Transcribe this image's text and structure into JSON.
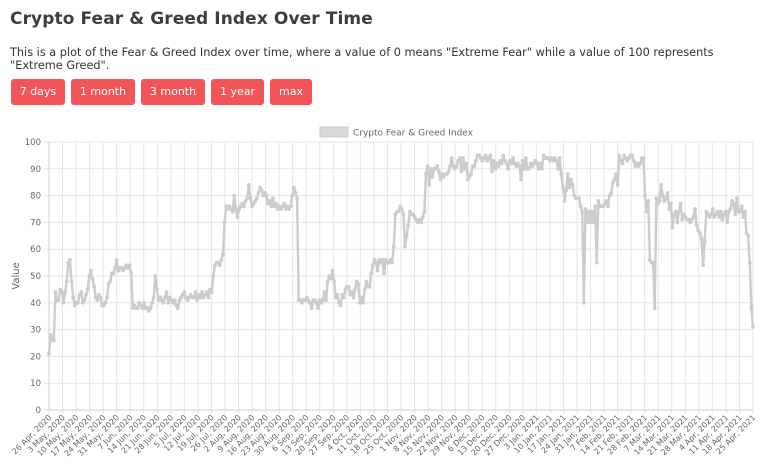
{
  "page": {
    "title": "Crypto Fear & Greed Index Over Time",
    "description": "This is a plot of the Fear & Greed Index over time, where a value of 0 means \"Extreme Fear\" while a value of 100 represents \"Extreme Greed\"."
  },
  "buttons": [
    {
      "label": "7 days"
    },
    {
      "label": "1 month"
    },
    {
      "label": "3 month"
    },
    {
      "label": "1 year"
    },
    {
      "label": "max"
    }
  ],
  "colors": {
    "accent": "#f25557",
    "series": "#cccccc",
    "grid": "#e6e6e6"
  },
  "chart_data": {
    "type": "line",
    "title": "",
    "xlabel": "",
    "ylabel": "Value",
    "ylim": [
      0,
      100
    ],
    "yticks": [
      0,
      10,
      20,
      30,
      40,
      50,
      60,
      70,
      80,
      90,
      100
    ],
    "grid": true,
    "legend_position": "top",
    "x_tick_labels": [
      "26 Apr, 2020",
      "3 May, 2020",
      "10 May, 2020",
      "17 May, 2020",
      "24 May, 2020",
      "31 May, 2020",
      "7 Jun, 2020",
      "14 Jun, 2020",
      "21 Jun, 2020",
      "28 Jun, 2020",
      "5 Jul, 2020",
      "12 Jul, 2020",
      "19 Jul, 2020",
      "26 Jul, 2020",
      "2 Aug, 2020",
      "9 Aug, 2020",
      "16 Aug, 2020",
      "23 Aug, 2020",
      "30 Aug, 2020",
      "6 Sep, 2020",
      "13 Sep, 2020",
      "20 Sep, 2020",
      "27 Sep, 2020",
      "4 Oct, 2020",
      "11 Oct, 2020",
      "18 Oct, 2020",
      "25 Oct, 2020",
      "1 Nov, 2020",
      "8 Nov, 2020",
      "15 Nov, 2020",
      "22 Nov, 2020",
      "29 Nov, 2020",
      "6 Dec, 2020",
      "13 Dec, 2020",
      "20 Dec, 2020",
      "27 Dec, 2020",
      "3 Jan, 2021",
      "10 Jan, 2021",
      "17 Jan, 2021",
      "24 Jan, 2021",
      "31 Jan, 2021",
      "7 Feb, 2021",
      "14 Feb, 2021",
      "21 Feb, 2021",
      "28 Feb, 2021",
      "7 Mar, 2021",
      "14 Mar, 2021",
      "21 Mar, 2021",
      "28 Mar, 2021",
      "4 Apr, 2021",
      "11 Apr, 2021",
      "18 Apr, 2021",
      "25 Apr, 2021"
    ],
    "series": [
      {
        "name": "Crypto Fear & Greed Index",
        "values": [
          21,
          28,
          26,
          26,
          44,
          41,
          41,
          45,
          44,
          40,
          44,
          48,
          55,
          56,
          48,
          42,
          39,
          40,
          40,
          43,
          44,
          40,
          41,
          43,
          45,
          50,
          52,
          49,
          46,
          42,
          41,
          43,
          42,
          39,
          39,
          40,
          42,
          47,
          48,
          51,
          51,
          53,
          56,
          52,
          53,
          53,
          52,
          53,
          54,
          53,
          54,
          51,
          38,
          39,
          38,
          38,
          40,
          39,
          38,
          40,
          38,
          38,
          37,
          38,
          40,
          42,
          50,
          45,
          41,
          42,
          41,
          40,
          42,
          44,
          40,
          42,
          41,
          40,
          41,
          39,
          38,
          41,
          42,
          43,
          44,
          42,
          41,
          42,
          43,
          42,
          42,
          44,
          41,
          43,
          42,
          44,
          42,
          43,
          44,
          42,
          45,
          44,
          50,
          54,
          55,
          55,
          54,
          56,
          58,
          70,
          76,
          75,
          76,
          75,
          74,
          80,
          75,
          72,
          75,
          76,
          77,
          76,
          78,
          79,
          84,
          79,
          76,
          77,
          78,
          79,
          81,
          83,
          82,
          80,
          81,
          80,
          77,
          78,
          76,
          79,
          76,
          77,
          75,
          76,
          75,
          76,
          77,
          75,
          76,
          75,
          76,
          80,
          83,
          81,
          79,
          41,
          41,
          40,
          41,
          41,
          42,
          41,
          40,
          38,
          41,
          41,
          40,
          38,
          41,
          40,
          41,
          44,
          41,
          48,
          50,
          49,
          52,
          48,
          42,
          43,
          40,
          39,
          43,
          42,
          45,
          46,
          46,
          43,
          44,
          42,
          45,
          48,
          47,
          40,
          42,
          40,
          45,
          48,
          46,
          46,
          51,
          54,
          56,
          55,
          52,
          56,
          55,
          56,
          51,
          56,
          55,
          55,
          56,
          55,
          61,
          73,
          74,
          74,
          76,
          75,
          73,
          61,
          65,
          69,
          74,
          73,
          73,
          72,
          71,
          70,
          71,
          70,
          72,
          74,
          88,
          91,
          84,
          90,
          87,
          90,
          90,
          91,
          89,
          86,
          88,
          87,
          88,
          88,
          89,
          91,
          94,
          91,
          90,
          91,
          93,
          94,
          89,
          94,
          90,
          92,
          86,
          87,
          88,
          91,
          91,
          93,
          95,
          95,
          94,
          93,
          94,
          95,
          93,
          94,
          95,
          89,
          93,
          90,
          92,
          91,
          93,
          92,
          95,
          93,
          92,
          90,
          93,
          92,
          94,
          92,
          91,
          92,
          91,
          86,
          93,
          90,
          94,
          90,
          90,
          92,
          91,
          92,
          93,
          92,
          90,
          92,
          90,
          95,
          94,
          94,
          94,
          93,
          94,
          93,
          94,
          93,
          90,
          94,
          88,
          83,
          78,
          82,
          88,
          83,
          86,
          84,
          80,
          79,
          79,
          79,
          76,
          74,
          40,
          75,
          70,
          74,
          70,
          74,
          70,
          76,
          55,
          78,
          76,
          76,
          76,
          77,
          78,
          76,
          80,
          81,
          85,
          86,
          88,
          84,
          95,
          93,
          92,
          95,
          94,
          93,
          94,
          95,
          95,
          93,
          91,
          92,
          91,
          92,
          94,
          94,
          80,
          74,
          78,
          56,
          55,
          55,
          38,
          79,
          77,
          78,
          84,
          80,
          78,
          79,
          81,
          75,
          77,
          68,
          73,
          74,
          70,
          74,
          77,
          71,
          73,
          72,
          71,
          71,
          70,
          71,
          72,
          75,
          69,
          67,
          66,
          64,
          54,
          63,
          74,
          73,
          72,
          73,
          75,
          72,
          73,
          74,
          72,
          74,
          71,
          73,
          74,
          70,
          74,
          75,
          78,
          77,
          73,
          79,
          74,
          74,
          76,
          72,
          74,
          66,
          65,
          55,
          38,
          31
        ]
      }
    ]
  }
}
